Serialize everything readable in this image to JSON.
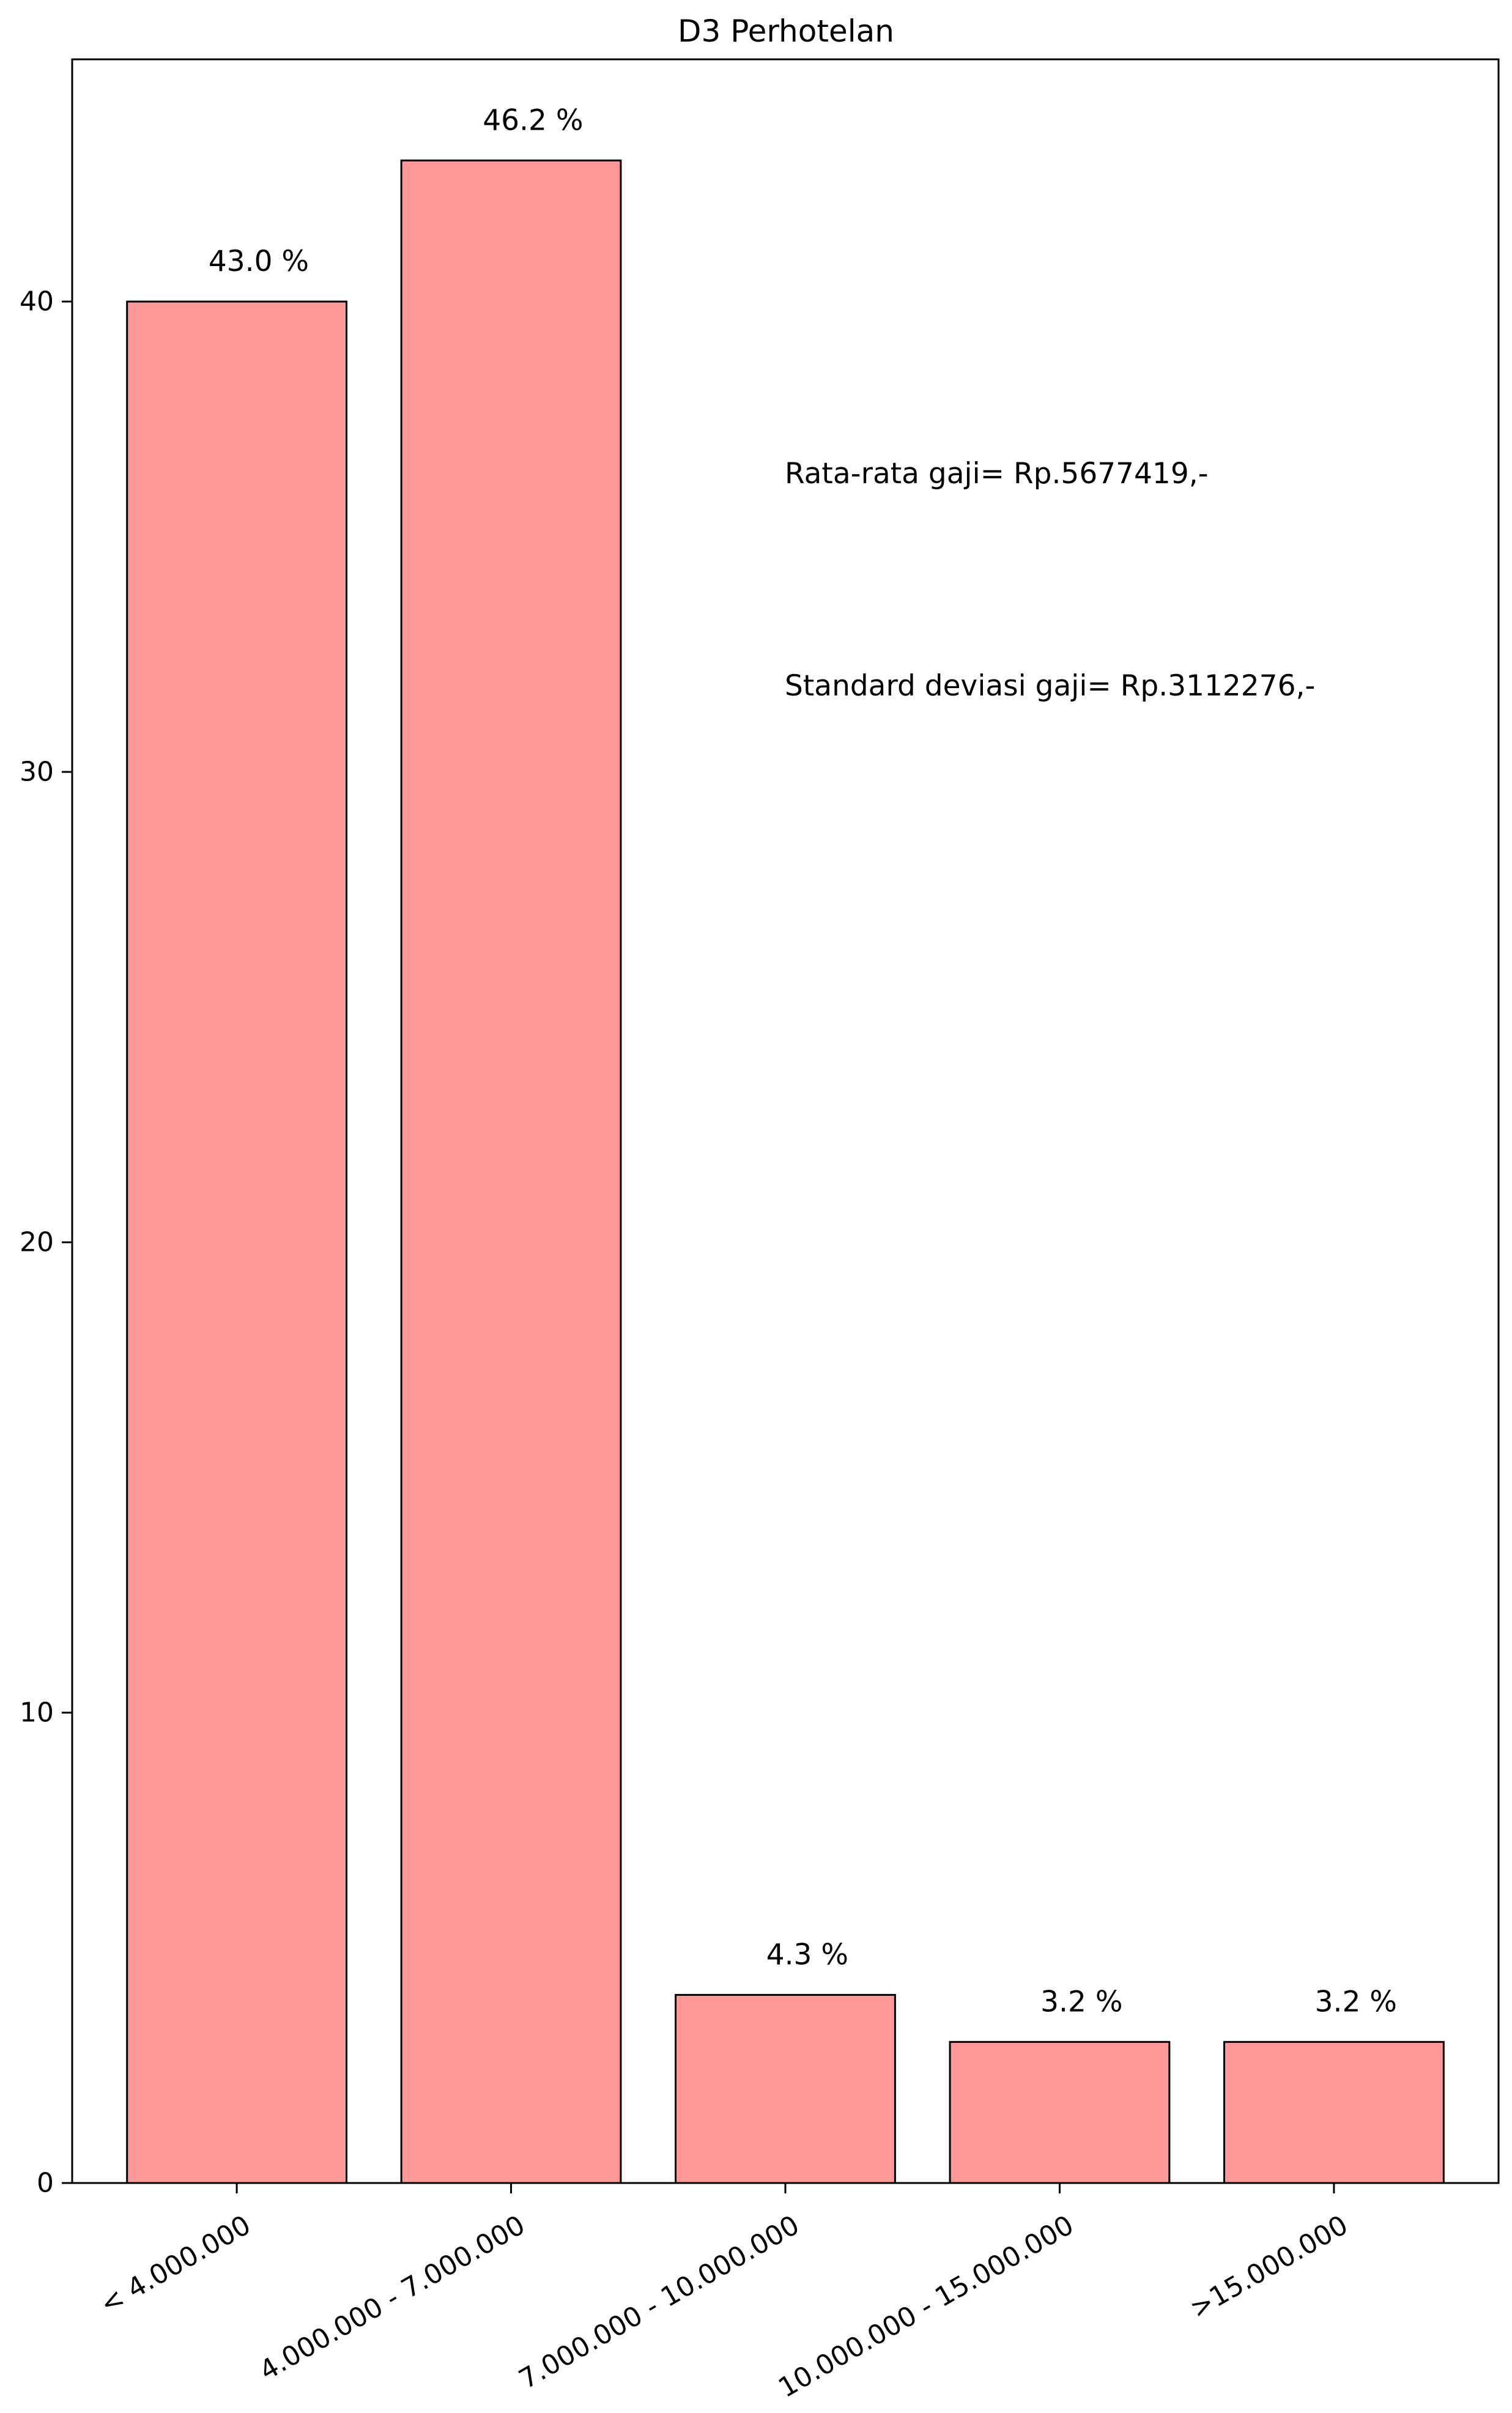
{
  "chart_data": {
    "type": "bar",
    "title": "D3 Perhotelan",
    "xlabel": "",
    "ylabel": "",
    "categories": [
      "< 4.000.000",
      "4.000.000 - 7.000.000",
      "7.000.000 - 10.000.000",
      "10.000.000 - 15.000.000",
      ">15.000.000"
    ],
    "values": [
      40,
      43,
      4,
      3,
      3
    ],
    "value_labels": [
      "43.0 %",
      "46.2 %",
      "4.3 %",
      "3.2 %",
      "3.2 %"
    ],
    "ylim": [
      0,
      45.15
    ],
    "yticks": [
      0,
      10,
      20,
      30,
      40
    ],
    "annotations": [
      "Rata-rata gaji= Rp.5677419,-",
      "Standard deviasi gaji= Rp.3112276,-"
    ],
    "bar_color": "#ff9999",
    "edge_color": "#000000",
    "grid": false,
    "x_tick_rotation": "30 degrees"
  }
}
